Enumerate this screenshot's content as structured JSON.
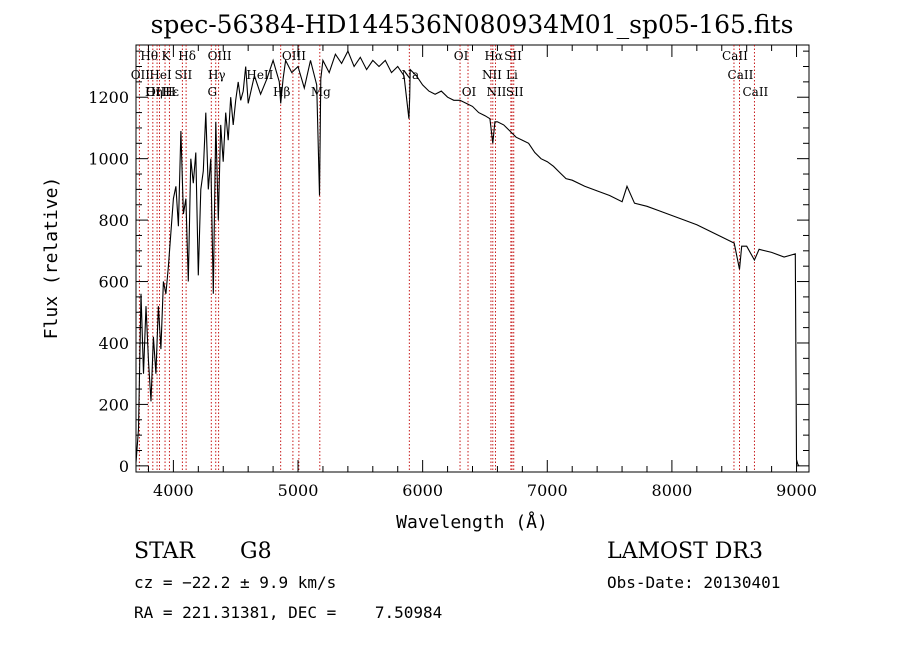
{
  "chart_data": {
    "type": "line",
    "title": "spec-56384-HD144536N080934M01_sp05-165.fits",
    "xlabel": "Wavelength (Å)",
    "ylabel": "Flux (relative)",
    "xlim": [
      3700,
      9100
    ],
    "ylim": [
      -20,
      1370
    ],
    "xticks": [
      4000,
      5000,
      6000,
      7000,
      8000,
      9000
    ],
    "yticks": [
      0,
      200,
      400,
      600,
      800,
      1000,
      1200
    ],
    "series": [
      {
        "name": "flux",
        "x": [
          3700,
          3720,
          3740,
          3760,
          3780,
          3800,
          3820,
          3840,
          3860,
          3880,
          3900,
          3920,
          3940,
          3960,
          3980,
          4000,
          4020,
          4040,
          4060,
          4080,
          4100,
          4120,
          4140,
          4160,
          4180,
          4200,
          4220,
          4240,
          4260,
          4280,
          4300,
          4320,
          4340,
          4360,
          4380,
          4400,
          4420,
          4440,
          4460,
          4480,
          4500,
          4520,
          4540,
          4560,
          4580,
          4600,
          4650,
          4700,
          4750,
          4800,
          4850,
          4861,
          4880,
          4900,
          4950,
          5000,
          5050,
          5100,
          5150,
          5172,
          5183,
          5200,
          5250,
          5300,
          5350,
          5400,
          5450,
          5500,
          5550,
          5600,
          5650,
          5700,
          5750,
          5800,
          5850,
          5890,
          5896,
          5900,
          5950,
          6000,
          6050,
          6100,
          6150,
          6200,
          6250,
          6300,
          6350,
          6400,
          6450,
          6500,
          6540,
          6563,
          6580,
          6600,
          6650,
          6700,
          6750,
          6800,
          6850,
          6900,
          6950,
          7000,
          7050,
          7100,
          7150,
          7200,
          7300,
          7400,
          7500,
          7600,
          7640,
          7700,
          7800,
          7900,
          8000,
          8100,
          8200,
          8300,
          8400,
          8500,
          8542,
          8560,
          8600,
          8662,
          8700,
          8800,
          8900,
          8990,
          9000,
          9010,
          9020
        ],
        "values": [
          10,
          120,
          560,
          300,
          520,
          340,
          210,
          420,
          300,
          520,
          380,
          600,
          560,
          650,
          760,
          870,
          910,
          780,
          1090,
          820,
          870,
          600,
          1000,
          920,
          1020,
          620,
          900,
          960,
          1150,
          900,
          1000,
          560,
          1120,
          800,
          1110,
          990,
          1150,
          1060,
          1200,
          1110,
          1190,
          1250,
          1190,
          1220,
          1300,
          1180,
          1270,
          1210,
          1260,
          1320,
          1250,
          1180,
          1260,
          1320,
          1280,
          1300,
          1230,
          1320,
          1240,
          880,
          1260,
          1320,
          1280,
          1340,
          1310,
          1350,
          1300,
          1330,
          1290,
          1320,
          1300,
          1320,
          1280,
          1300,
          1270,
          1130,
          1200,
          1290,
          1270,
          1240,
          1220,
          1210,
          1220,
          1200,
          1190,
          1190,
          1180,
          1170,
          1150,
          1140,
          1130,
          1050,
          1120,
          1120,
          1110,
          1090,
          1070,
          1060,
          1050,
          1020,
          1000,
          990,
          975,
          955,
          935,
          930,
          910,
          895,
          880,
          860,
          910,
          855,
          845,
          830,
          815,
          800,
          785,
          765,
          745,
          725,
          640,
          715,
          715,
          670,
          705,
          695,
          680,
          690,
          20,
          5,
          0
        ],
        "labels": []
      }
    ],
    "annotations": [
      "Hθ",
      "OII",
      "OIII",
      "Hε",
      "K",
      "HeI",
      "Hη",
      "Hδ",
      "SII",
      "H",
      "OIII",
      "Hγ",
      "G",
      "OIII",
      "HeII",
      "Hβ",
      "Mg",
      "Na",
      "OI",
      "OI",
      "Hα",
      "NII",
      "SII",
      "Li",
      "NII",
      "SII",
      "CaII",
      "CaII",
      "CaII"
    ]
  },
  "footer": {
    "object_type": "STAR",
    "subclass": "G8",
    "survey": "LAMOST DR3",
    "cz": "cz = −22.2 ± 9.9 km/s",
    "obs_date": "Obs-Date: 20130401",
    "radec": "RA = 221.31381, DEC =    7.50984"
  }
}
